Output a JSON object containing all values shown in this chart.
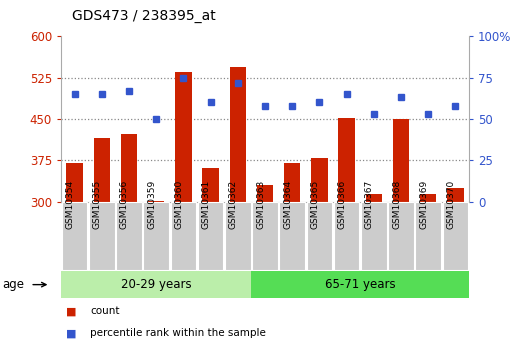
{
  "title": "GDS473 / 238395_at",
  "samples": [
    "GSM10354",
    "GSM10355",
    "GSM10356",
    "GSM10359",
    "GSM10360",
    "GSM10361",
    "GSM10362",
    "GSM10363",
    "GSM10364",
    "GSM10365",
    "GSM10366",
    "GSM10367",
    "GSM10368",
    "GSM10369",
    "GSM10370"
  ],
  "counts": [
    370,
    415,
    422,
    302,
    535,
    362,
    545,
    330,
    370,
    380,
    452,
    315,
    450,
    315,
    325
  ],
  "percentiles": [
    65,
    65,
    67,
    50,
    75,
    60,
    72,
    58,
    58,
    60,
    65,
    53,
    63,
    53,
    58
  ],
  "group1_label": "20-29 years",
  "group2_label": "65-71 years",
  "group1_count": 7,
  "group2_count": 8,
  "age_label": "age",
  "left_ylim": [
    300,
    600
  ],
  "right_ylim": [
    0,
    100
  ],
  "left_yticks": [
    300,
    375,
    450,
    525,
    600
  ],
  "right_yticks": [
    0,
    25,
    50,
    75,
    100
  ],
  "right_yticklabels": [
    "0",
    "25",
    "50",
    "75",
    "100%"
  ],
  "bar_color": "#cc2200",
  "square_color": "#3355cc",
  "group1_bg": "#bbeeaa",
  "group2_bg": "#55dd55",
  "tick_label_bg": "#cccccc",
  "legend_bar_label": "count",
  "legend_sq_label": "percentile rank within the sample",
  "title_color": "#000000",
  "left_tick_color": "#cc2200",
  "right_tick_color": "#3355cc",
  "dotted_grid_color": "#888888"
}
